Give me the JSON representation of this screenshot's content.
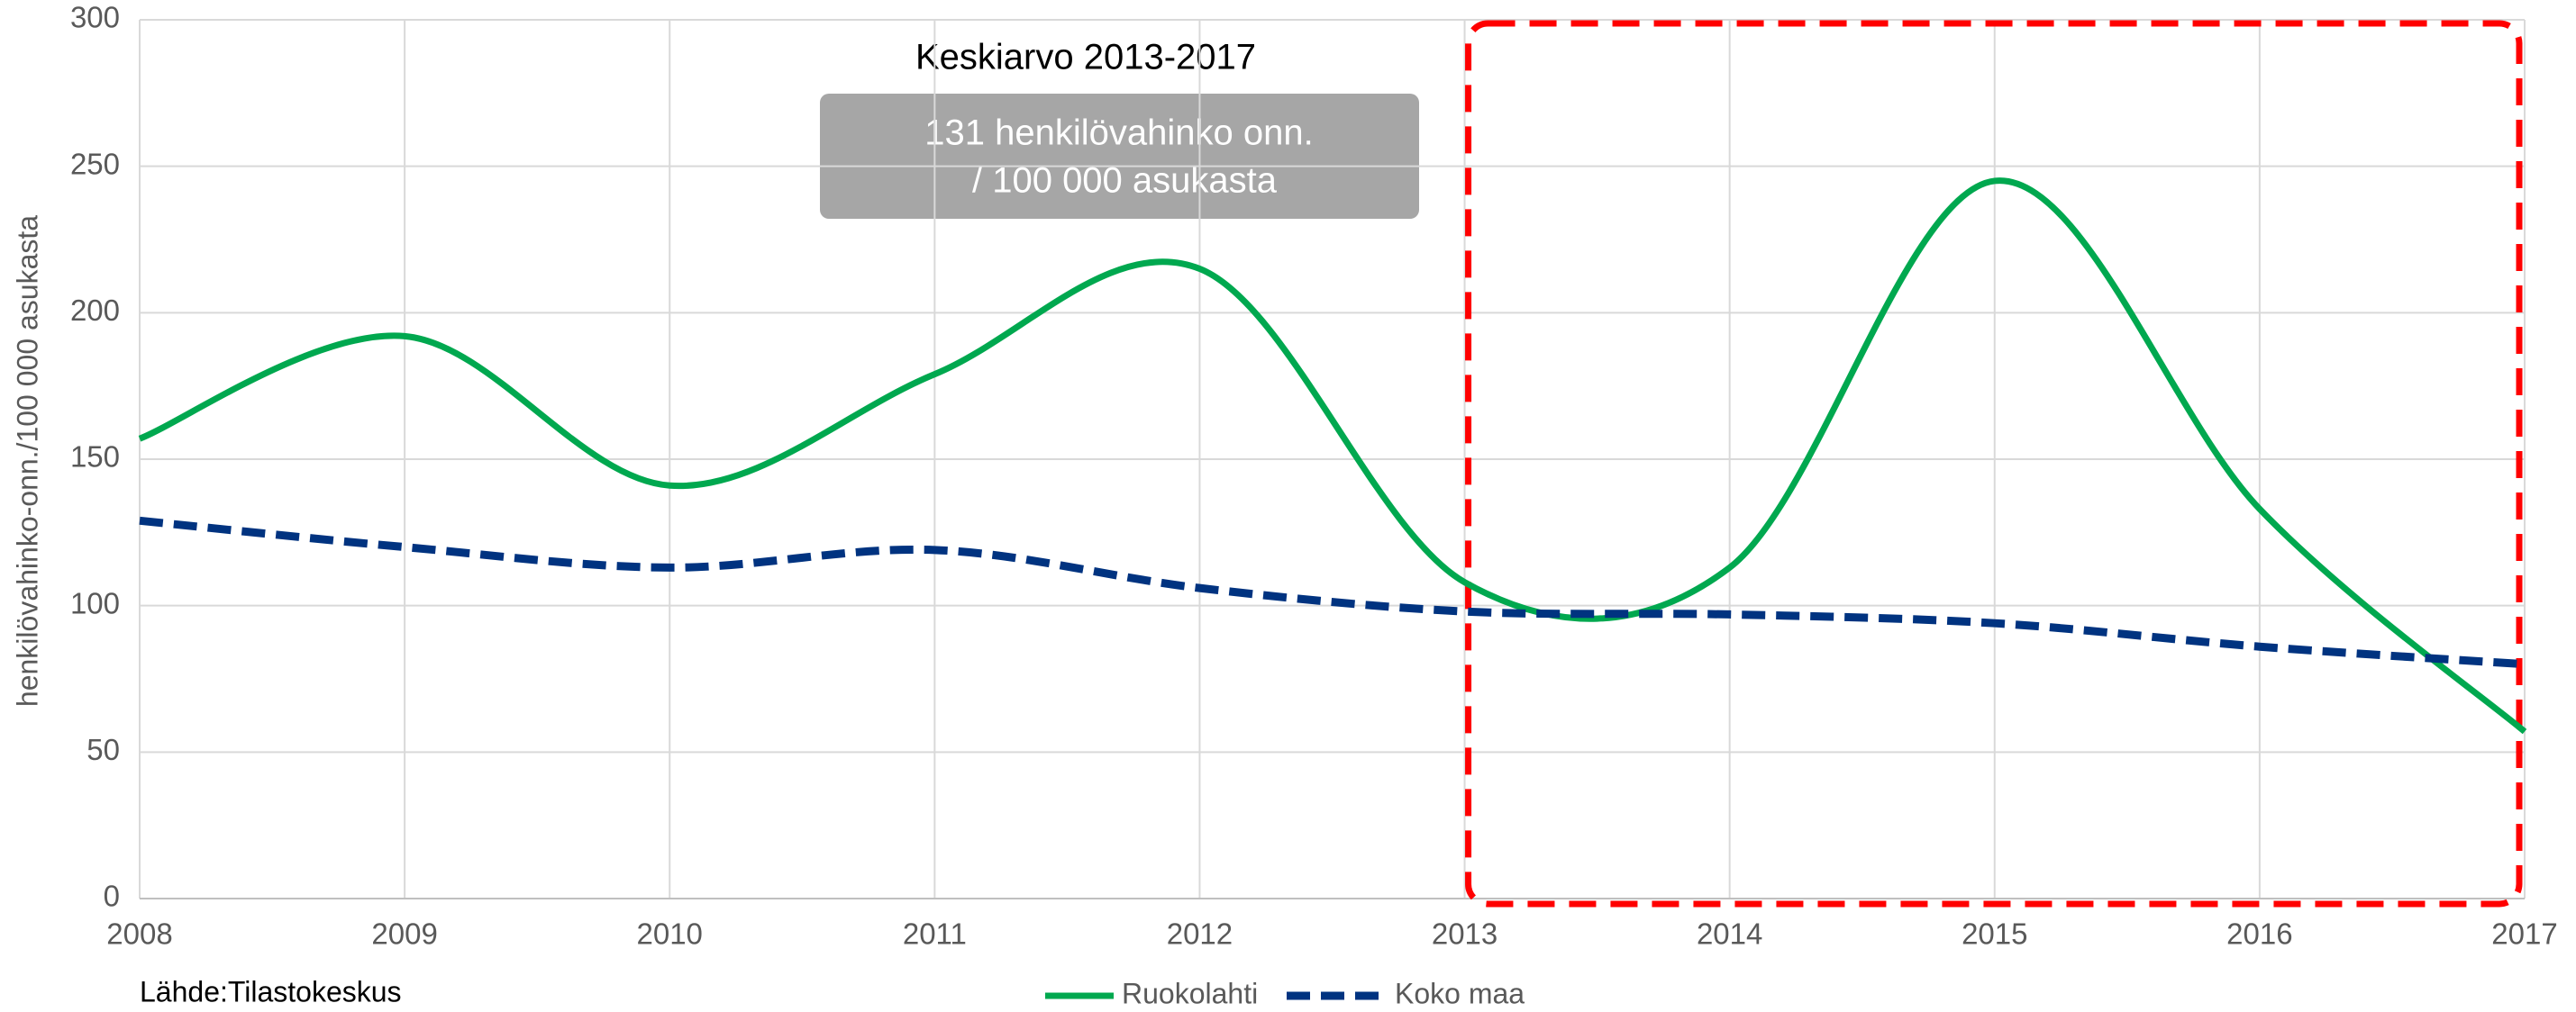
{
  "chart_data": {
    "type": "line",
    "annotation_title": "Keskiarvo 2013-2017",
    "annotation_box": [
      "131 henkilövahinko onn.",
      "/ 100 000 asukasta"
    ],
    "ylabel": "henkilövahinko-onn./100 000 asukasta",
    "source": "Lähde:Tilastokeskus",
    "x": [
      2008,
      2009,
      2010,
      2011,
      2012,
      2013,
      2014,
      2015,
      2016,
      2017
    ],
    "series": [
      {
        "name": "Ruokolahti",
        "color": "#00a84f",
        "dash": false,
        "values": [
          157,
          192,
          141,
          179,
          215,
          108,
          113,
          245,
          133,
          57
        ]
      },
      {
        "name": "Koko maa",
        "color": "#003380",
        "dash": true,
        "values": [
          129,
          120,
          113,
          119,
          106,
          98,
          97,
          94,
          86,
          80
        ]
      }
    ],
    "xlim": [
      2008,
      2017
    ],
    "xticks": [
      2008,
      2009,
      2010,
      2011,
      2012,
      2013,
      2014,
      2015,
      2016,
      2017
    ],
    "ylim": [
      0,
      300
    ],
    "yticks": [
      0,
      50,
      100,
      150,
      200,
      250,
      300
    ],
    "grid": true,
    "smooth": true,
    "legend": "bottom"
  }
}
